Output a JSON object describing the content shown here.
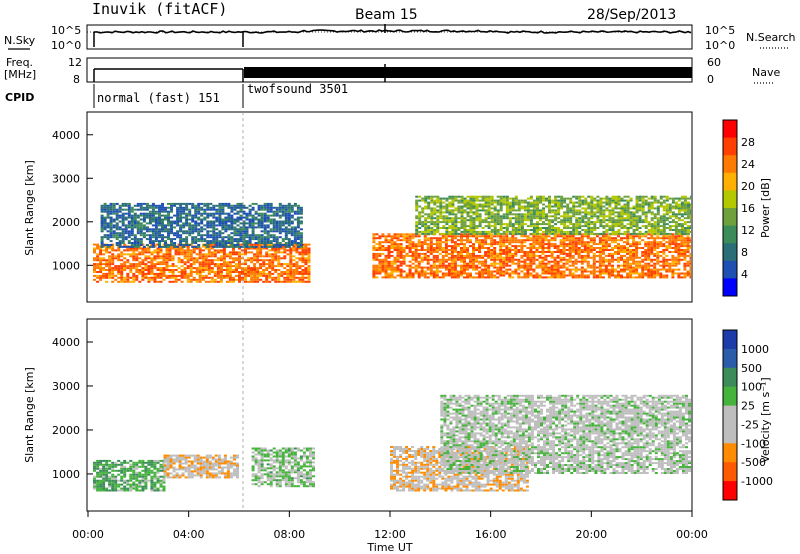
{
  "header": {
    "site": "Inuvik (fitACF)",
    "beam": "Beam 15",
    "date": "28/Sep/2013"
  },
  "strip_labels": {
    "nsky": "N.Sky",
    "freq_line1": "Freq.",
    "freq_line2": "[MHz]",
    "cpid": "CPID",
    "nsearch": "N.Search",
    "nave": "Nave",
    "nsky_ticks": [
      "10^5",
      "10^0"
    ],
    "freq_ticks": [
      "12",
      "8"
    ],
    "nave_ticks": [
      "60",
      "0"
    ]
  },
  "cpid_segments": [
    {
      "label": "normal (fast) 151",
      "start_hour": 0.0,
      "end_hour": 6.0
    },
    {
      "label": "twofsound 3501",
      "start_hour": 6.0,
      "end_hour": 24.0
    }
  ],
  "x_axis": {
    "label": "Time UT",
    "ticks": [
      "00:00",
      "04:00",
      "08:00",
      "12:00",
      "16:00",
      "20:00",
      "00:00"
    ]
  },
  "power_panel": {
    "ylabel": "Slant Range [km]",
    "yticks": [
      "4000",
      "3000",
      "2000",
      "1000"
    ],
    "colorbar_label": "Power [dB]",
    "colorbar_ticks": [
      "28",
      "24",
      "20",
      "16",
      "12",
      "8",
      "4"
    ],
    "colors": [
      "#ff0000",
      "#ff4000",
      "#ff7a00",
      "#ffb000",
      "#b4c800",
      "#6ea03c",
      "#3c8c5a",
      "#2a6e78",
      "#1e50b4",
      "#0000ff"
    ]
  },
  "velocity_panel": {
    "ylabel": "Slant Range [km]",
    "yticks": [
      "4000",
      "3000",
      "2000",
      "1000"
    ],
    "colorbar_label": "Velocity [m s⁻¹]",
    "colorbar_ticks": [
      "1000",
      "500",
      "100",
      "25",
      "-25",
      "-100",
      "-500",
      "-1000"
    ],
    "colors": [
      "#1c3caa",
      "#2a5caa",
      "#3c8c5a",
      "#46b43c",
      "#bebebe",
      "#bebebe",
      "#ff8c00",
      "#ff5a00",
      "#ff0000"
    ]
  },
  "chart_data": {
    "type": "heatmap",
    "title": "Inuvik (fitACF) Beam 15 28/Sep/2013",
    "xlabel": "Time UT",
    "ylabel": "Slant Range [km]",
    "xlim_hours": [
      0,
      24
    ],
    "ylim_km": [
      180,
      4500
    ],
    "series": [
      {
        "name": "Power [dB]",
        "range": [
          0,
          30
        ],
        "echo_bands": [
          {
            "t_start": 0.2,
            "t_end": 8.8,
            "range_km": [
              600,
              1500
            ],
            "value_dB": 24
          },
          {
            "t_start": 0.5,
            "t_end": 8.5,
            "range_km": [
              1400,
              2400
            ],
            "value_dB": 6
          },
          {
            "t_start": 11.3,
            "t_end": 24.0,
            "range_km": [
              700,
              1700
            ],
            "value_dB": 24
          },
          {
            "t_start": 13.0,
            "t_end": 24.0,
            "range_km": [
              1700,
              2600
            ],
            "value_dB": 14
          }
        ]
      },
      {
        "name": "Velocity [m s-1]",
        "range": [
          -1000,
          1000
        ],
        "echo_bands": [
          {
            "t_start": 0.2,
            "t_end": 3.0,
            "range_km": [
              600,
              1300
            ],
            "value_ms": 300
          },
          {
            "t_start": 3.0,
            "t_end": 6.0,
            "range_km": [
              900,
              1400
            ],
            "value_ms": -300
          },
          {
            "t_start": 6.5,
            "t_end": 9.0,
            "range_km": [
              700,
              1600
            ],
            "value_ms": 150
          },
          {
            "t_start": 12.0,
            "t_end": 17.5,
            "range_km": [
              600,
              1600
            ],
            "value_ms": -300
          },
          {
            "t_start": 14.0,
            "t_end": 24.0,
            "range_km": [
              1000,
              2800
            ],
            "value_ms": 0
          }
        ]
      }
    ],
    "nsky_level": 10000,
    "freq_MHz_segments": [
      {
        "t_start": 0,
        "t_end": 6,
        "freq_MHz": 11.5
      },
      {
        "t_start": 6,
        "t_end": 24,
        "freq_MHz": 11.5
      }
    ]
  }
}
